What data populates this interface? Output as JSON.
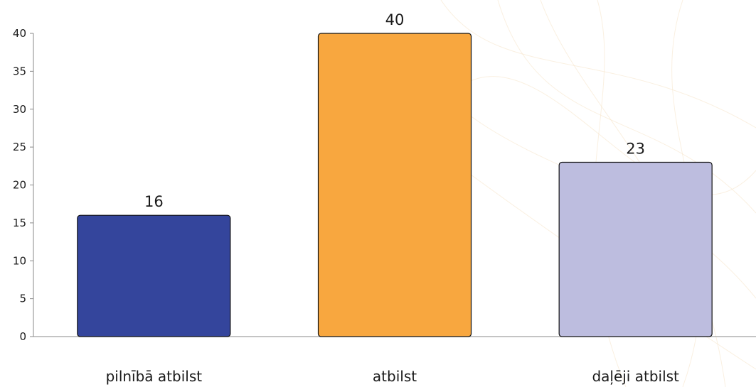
{
  "chart_data": {
    "type": "bar",
    "categories": [
      "pilnībā atbilst",
      "atbilst",
      "daļēji atbilst"
    ],
    "values": [
      16,
      40,
      23
    ],
    "colors": [
      "#34459c",
      "#f8a73f",
      "#bdbddf"
    ],
    "yticks": [
      "0",
      "5",
      "10",
      "15",
      "20",
      "25",
      "30",
      "35",
      "40"
    ],
    "ylim": [
      0,
      40
    ],
    "title": "",
    "xlabel": "",
    "ylabel": "",
    "grid": false,
    "data_labels": [
      "16",
      "40",
      "23"
    ]
  }
}
